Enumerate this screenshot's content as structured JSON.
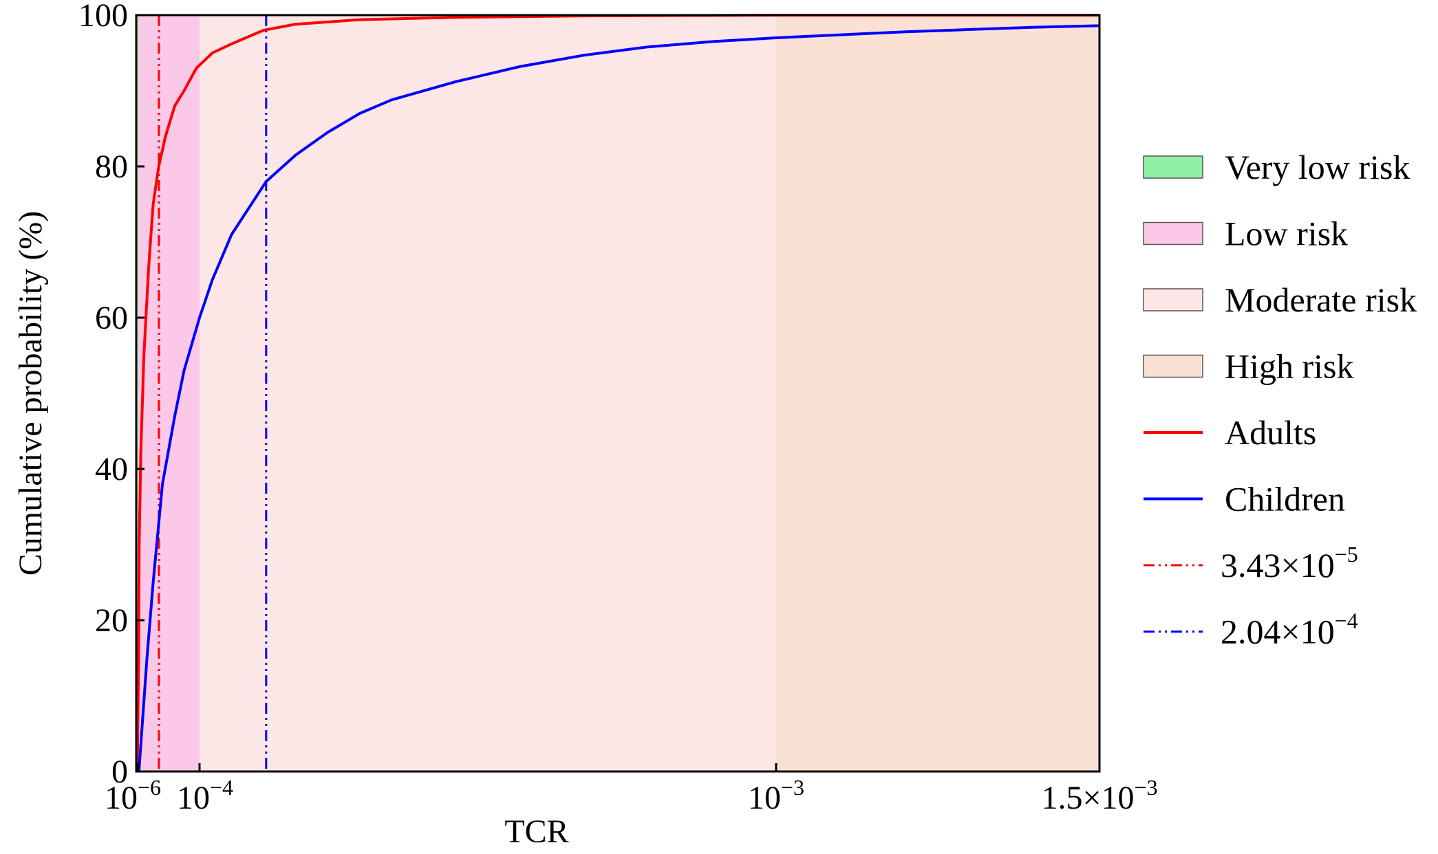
{
  "chart_data": {
    "type": "line",
    "title": "",
    "xlabel": "TCR",
    "ylabel": "Cumulative probability (%)",
    "xlim": [
      0,
      0.0015
    ],
    "ylim": [
      0,
      100
    ],
    "grid": false,
    "legend_position": "right",
    "x_ticks": [
      {
        "value": 1e-06,
        "base": "10",
        "exp": "−6",
        "mult": ""
      },
      {
        "value": 0.0001,
        "base": "10",
        "exp": "−4",
        "mult": ""
      },
      {
        "value": 0.001,
        "base": "10",
        "exp": "−3",
        "mult": ""
      },
      {
        "value": 0.0015,
        "base": "10",
        "exp": "−3",
        "mult": "1.5×"
      }
    ],
    "y_ticks": [
      {
        "value": 0,
        "label": "0"
      },
      {
        "value": 20,
        "label": "20"
      },
      {
        "value": 40,
        "label": "40"
      },
      {
        "value": 60,
        "label": "60"
      },
      {
        "value": 80,
        "label": "80"
      },
      {
        "value": 100,
        "label": "100"
      }
    ],
    "regions": [
      {
        "name": "Very low risk",
        "from": 0,
        "to": 1e-06,
        "color": "#8ff0a4"
      },
      {
        "name": "Low risk",
        "from": 1e-06,
        "to": 0.0001,
        "color": "#fcc8e8"
      },
      {
        "name": "Moderate risk",
        "from": 0.0001,
        "to": 0.001,
        "color": "#fde7e6"
      },
      {
        "name": "High risk",
        "from": 0.001,
        "to": 0.0015,
        "color": "#fbe1d3"
      }
    ],
    "series": [
      {
        "name": "Adults",
        "color": "#ff0000",
        "points": [
          [
            5e-07,
            0
          ],
          [
            1.5e-06,
            15
          ],
          [
            2.5e-06,
            30
          ],
          [
            5e-06,
            42
          ],
          [
            1e-05,
            55
          ],
          [
            1.8e-05,
            67
          ],
          [
            2.5e-05,
            75
          ],
          [
            3.4e-05,
            80
          ],
          [
            4.5e-05,
            84
          ],
          [
            6e-05,
            88
          ],
          [
            7.5e-05,
            90
          ],
          [
            9.5e-05,
            93
          ],
          [
            0.00012,
            95
          ],
          [
            0.00015,
            96.2
          ],
          [
            0.0002,
            98
          ],
          [
            0.00025,
            98.8
          ],
          [
            0.00035,
            99.4
          ],
          [
            0.0005,
            99.7
          ],
          [
            0.0007,
            99.9
          ],
          [
            0.001,
            100
          ],
          [
            0.0015,
            100
          ]
        ]
      },
      {
        "name": "Children",
        "color": "#0000ff",
        "points": [
          [
            2e-06,
            0
          ],
          [
            1.5e-05,
            15
          ],
          [
            2.5e-05,
            25
          ],
          [
            4e-05,
            38
          ],
          [
            6e-05,
            47
          ],
          [
            7.5e-05,
            53
          ],
          [
            0.0001,
            60
          ],
          [
            0.00012,
            65
          ],
          [
            0.00015,
            71
          ],
          [
            0.000204,
            78
          ],
          [
            0.00025,
            81.5
          ],
          [
            0.0003,
            84.5
          ],
          [
            0.00035,
            87
          ],
          [
            0.0004,
            88.8
          ],
          [
            0.0005,
            91.2
          ],
          [
            0.0006,
            93.2
          ],
          [
            0.0007,
            94.7
          ],
          [
            0.0008,
            95.8
          ],
          [
            0.0009,
            96.5
          ],
          [
            0.001,
            97
          ],
          [
            0.0011,
            97.4
          ],
          [
            0.0012,
            97.8
          ],
          [
            0.0013,
            98.1
          ],
          [
            0.0014,
            98.4
          ],
          [
            0.0015,
            98.6
          ]
        ]
      }
    ],
    "reference_lines": [
      {
        "value": 3.43e-05,
        "color": "#ff0000",
        "label_mant": "3.43×10",
        "label_exp": "−5"
      },
      {
        "value": 0.000204,
        "color": "#0000ff",
        "label_mant": "2.04×10",
        "label_exp": "−4"
      }
    ]
  }
}
